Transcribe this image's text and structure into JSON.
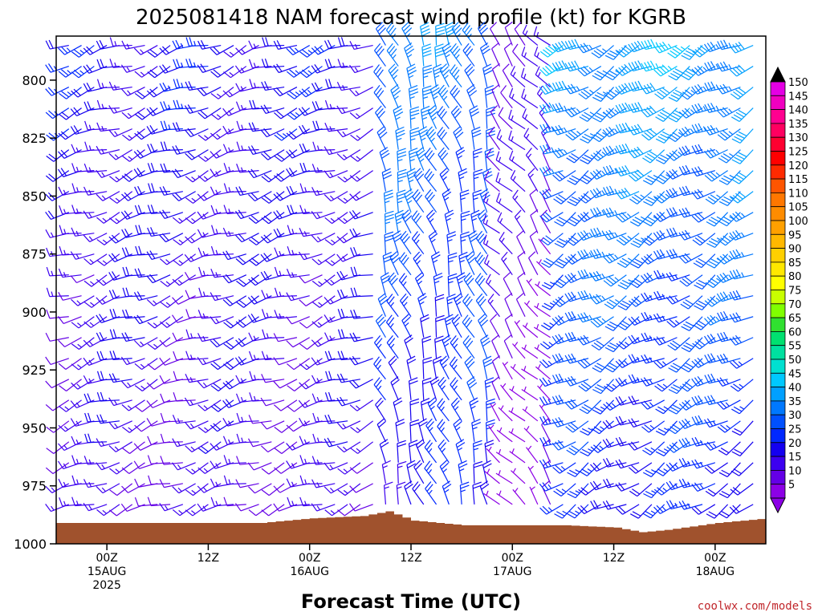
{
  "chart_data": {
    "type": "wind-barb-timeheight",
    "title": "2025081418 NAM forecast wind profile (kt) for KGRB",
    "xlabel": "Forecast Time (UTC)",
    "ylabel": "",
    "y_axis": {
      "ticks": [
        "800",
        "825",
        "850",
        "875",
        "900",
        "925",
        "950",
        "975",
        "1000"
      ],
      "ylim": [
        1000,
        781
      ],
      "inverted": true
    },
    "x_axis": {
      "ticks": [
        {
          "hour": 6,
          "line1": "00Z",
          "line2": "15AUG",
          "line3": "2025"
        },
        {
          "hour": 18,
          "line1": "12Z",
          "line2": "",
          "line3": ""
        },
        {
          "hour": 30,
          "line1": "00Z",
          "line2": "16AUG",
          "line3": ""
        },
        {
          "hour": 42,
          "line1": "12Z",
          "line2": "",
          "line3": ""
        },
        {
          "hour": 54,
          "line1": "00Z",
          "line2": "17AUG",
          "line3": ""
        },
        {
          "hour": 66,
          "line1": "12Z",
          "line2": "",
          "line3": ""
        },
        {
          "hour": 78,
          "line1": "00Z",
          "line2": "18AUG",
          "line3": ""
        }
      ],
      "xlim": [
        0,
        84
      ]
    },
    "colorbar": {
      "ticks": [
        "150",
        "145",
        "140",
        "135",
        "130",
        "125",
        "120",
        "115",
        "110",
        "105",
        "100",
        "95",
        "90",
        "85",
        "80",
        "75",
        "70",
        "65",
        "60",
        "55",
        "50",
        "45",
        "40",
        "35",
        "30",
        "25",
        "20",
        "15",
        "10",
        "5"
      ],
      "colors": [
        "#e400e4",
        "#f000c0",
        "#ff0090",
        "#ff0060",
        "#ff0030",
        "#ff0000",
        "#ff2a00",
        "#ff5500",
        "#ff7700",
        "#ff8c00",
        "#ffa000",
        "#ffb800",
        "#ffd000",
        "#ffe800",
        "#ffff00",
        "#c8ff00",
        "#80ff00",
        "#30e030",
        "#00e070",
        "#00e0a0",
        "#00e0d0",
        "#00c8ff",
        "#00a0ff",
        "#0078ff",
        "#0050ff",
        "#0028ff",
        "#1400f0",
        "#3c00f0",
        "#6400e6",
        "#8c00e6"
      ]
    },
    "wind_field": {
      "time_hours": [
        0,
        84
      ],
      "pressure_levels": [
        785,
        1000
      ],
      "regimes": [
        {
          "hours": [
            0,
            38
          ],
          "direction_deg": 250,
          "speed_kt": [
            10,
            20
          ]
        },
        {
          "hours": [
            38,
            52
          ],
          "direction_deg": 340,
          "speed_kt": [
            15,
            35
          ]
        },
        {
          "hours": [
            52,
            60
          ],
          "direction_deg": 320,
          "speed_kt": [
            5,
            12
          ]
        },
        {
          "hours": [
            60,
            84
          ],
          "direction_deg": 240,
          "speed_kt": [
            15,
            40
          ]
        }
      ]
    },
    "surface_pressure": {
      "hours": [
        0,
        6,
        12,
        18,
        24,
        30,
        36,
        39,
        42,
        48,
        54,
        60,
        66,
        69,
        72,
        78,
        84
      ],
      "values_hpa": [
        991,
        991,
        991,
        991,
        991,
        989,
        988,
        986,
        990,
        992,
        992,
        992,
        993,
        995,
        994,
        991,
        989
      ]
    }
  },
  "credit": "coolwx.com/models"
}
